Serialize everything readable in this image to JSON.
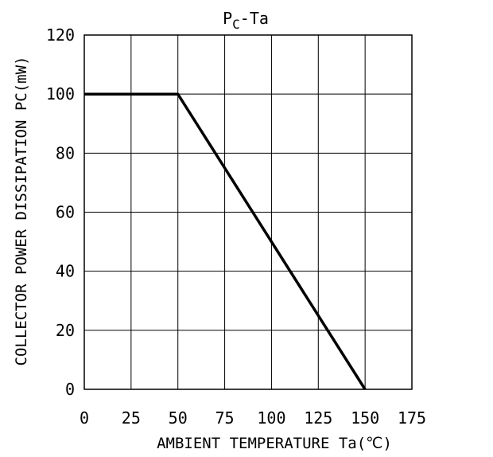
{
  "chart_data": {
    "type": "line",
    "title_main": "P",
    "title_sub": "C",
    "title_rest": "-Ta",
    "xlabel": "AMBIENT TEMPERATURE Ta(℃)",
    "ylabel": "COLLECTOR POWER DISSIPATION PC(mW)",
    "xlim": [
      0,
      175
    ],
    "ylim": [
      0,
      120
    ],
    "xticks": [
      0,
      25,
      50,
      75,
      100,
      125,
      150,
      175
    ],
    "yticks": [
      0,
      20,
      40,
      60,
      80,
      100,
      120
    ],
    "grid": true,
    "line_color": "#000000",
    "series": [
      {
        "x": [
          0,
          50,
          150
        ],
        "y": [
          100,
          100,
          0
        ]
      }
    ]
  }
}
